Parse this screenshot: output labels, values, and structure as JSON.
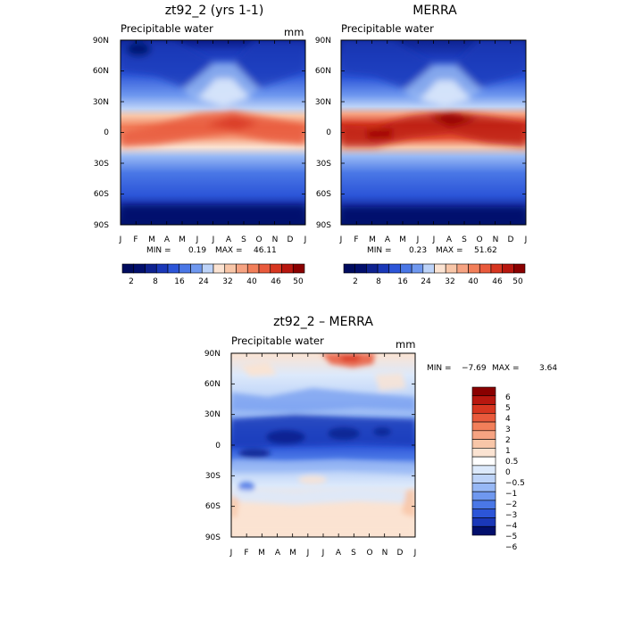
{
  "figure": {
    "colors": {
      "warm": [
        "#fbe3d2",
        "#f8c6a8",
        "#f6a382",
        "#f27f5a",
        "#e95a3c",
        "#d73620",
        "#b8170f",
        "#8a0000"
      ],
      "cool": [
        "#dce9fb",
        "#bdd3f8",
        "#97b8f5",
        "#6f98ef",
        "#4a77e6",
        "#2c55d8",
        "#1a38b8",
        "#0e2290",
        "#020f6c",
        "#000b5e"
      ],
      "background": "#ffffff",
      "axis": "#000000"
    }
  },
  "chart_data": [
    {
      "id": "top_left",
      "type": "heatmap",
      "title": "zt92_2 (yrs 1-1)",
      "variable": "Precipitable water",
      "units": "mm",
      "x_ticks": [
        "J",
        "F",
        "M",
        "A",
        "M",
        "J",
        "J",
        "A",
        "S",
        "O",
        "N",
        "D",
        "J"
      ],
      "y_ticks": [
        "90N",
        "60N",
        "30N",
        "0",
        "30S",
        "60S",
        "90S"
      ],
      "min_label": "MIN =",
      "min_value": "0.19",
      "max_label": "MAX =",
      "max_value": "46.11",
      "colorbar": {
        "orientation": "horizontal",
        "levels": [
          2,
          4,
          8,
          12,
          16,
          20,
          24,
          28,
          32,
          36,
          40,
          44,
          46,
          48,
          50
        ],
        "tick_labels": [
          "2",
          "8",
          "16",
          "24",
          "32",
          "40",
          "46",
          "50"
        ]
      }
    },
    {
      "id": "top_right",
      "type": "heatmap",
      "title": "MERRA",
      "variable": "Precipitable water",
      "units": "",
      "x_ticks": [
        "J",
        "F",
        "M",
        "A",
        "M",
        "J",
        "J",
        "A",
        "S",
        "O",
        "N",
        "D",
        "J"
      ],
      "y_ticks": [
        "90N",
        "60N",
        "30N",
        "0",
        "30S",
        "60S",
        "90S"
      ],
      "min_label": "MIN =",
      "min_value": "0.23",
      "max_label": "MAX =",
      "max_value": "51.62",
      "colorbar": {
        "orientation": "horizontal",
        "levels": [
          2,
          4,
          8,
          12,
          16,
          20,
          24,
          28,
          32,
          36,
          40,
          44,
          46,
          48,
          50
        ],
        "tick_labels": [
          "2",
          "8",
          "16",
          "24",
          "32",
          "40",
          "46",
          "50"
        ]
      }
    },
    {
      "id": "bottom",
      "type": "heatmap",
      "title": "zt92_2 – MERRA",
      "variable": "Precipitable water",
      "units": "mm",
      "x_ticks": [
        "J",
        "F",
        "M",
        "A",
        "M",
        "J",
        "J",
        "A",
        "S",
        "O",
        "N",
        "D",
        "J"
      ],
      "y_ticks": [
        "90N",
        "60N",
        "30N",
        "0",
        "30S",
        "60S",
        "90S"
      ],
      "min_label": "MIN =",
      "min_value": "−7.69",
      "max_label": "MAX =",
      "max_value": "3.64",
      "colorbar": {
        "orientation": "vertical",
        "levels": [
          6,
          5,
          4,
          3,
          2,
          1,
          0.5,
          0,
          -0.5,
          -1,
          -2,
          -3,
          -4,
          -5,
          -6
        ],
        "tick_labels": [
          "6",
          "5",
          "4",
          "3",
          "2",
          "1",
          "0.5",
          "0",
          "−0.5",
          "−1",
          "−2",
          "−3",
          "−4",
          "−5",
          "−6"
        ]
      }
    }
  ]
}
